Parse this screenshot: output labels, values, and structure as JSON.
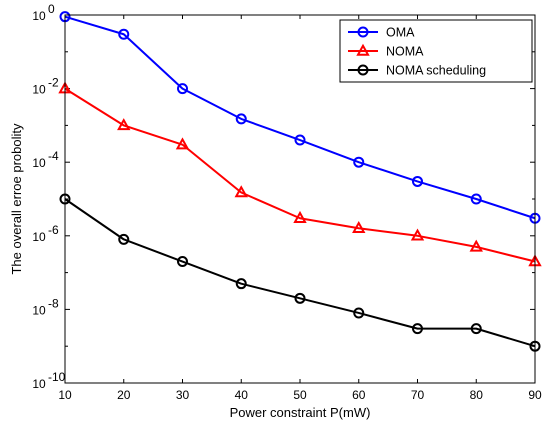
{
  "chart_data": {
    "type": "line",
    "title": "",
    "xlabel": "Power constraint P(mW)",
    "ylabel": "The overall erroe probolity",
    "x": [
      10,
      20,
      30,
      40,
      50,
      60,
      70,
      80,
      90
    ],
    "xlim": [
      10,
      90
    ],
    "ylim": [
      1e-10,
      1
    ],
    "yscale": "log",
    "x_ticks": [
      "10",
      "20",
      "30",
      "40",
      "50",
      "60",
      "70",
      "80",
      "90"
    ],
    "y_ticks": [
      {
        "base": "10",
        "exp": "0",
        "value": 1
      },
      {
        "base": "10",
        "exp": "-2",
        "value": 0.01
      },
      {
        "base": "10",
        "exp": "-4",
        "value": 0.0001
      },
      {
        "base": "10",
        "exp": "-6",
        "value": 1e-06
      },
      {
        "base": "10",
        "exp": "-8",
        "value": 1e-08
      },
      {
        "base": "10",
        "exp": "-10",
        "value": 1e-10
      }
    ],
    "grid": false,
    "legend_position": "top-right",
    "series": [
      {
        "name": "OMA",
        "color": "#0000ff",
        "marker": "circle",
        "values": [
          0.9,
          0.3,
          0.01,
          0.0015,
          0.0004,
          0.0001,
          3e-05,
          1e-05,
          3e-06
        ]
      },
      {
        "name": "NOMA",
        "color": "#ff0000",
        "marker": "triangle",
        "values": [
          0.01,
          0.001,
          0.0003,
          1.5e-05,
          3e-06,
          1.6e-06,
          1e-06,
          5e-07,
          2e-07
        ]
      },
      {
        "name": "NOMA scheduling",
        "color": "#000000",
        "marker": "circle",
        "values": [
          1e-05,
          8e-07,
          2e-07,
          5e-08,
          2e-08,
          8e-09,
          3e-09,
          3e-09,
          1e-09
        ]
      }
    ]
  }
}
